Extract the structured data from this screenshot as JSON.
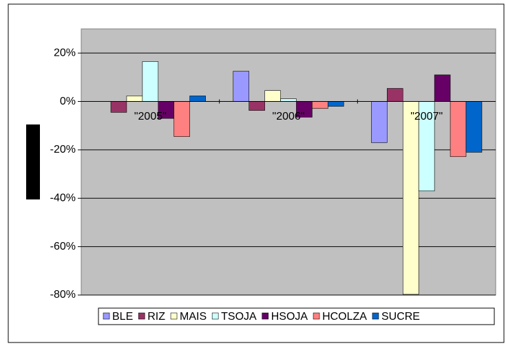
{
  "chart_data": {
    "type": "bar",
    "categories": [
      "\"2005\"",
      "\"2006\"",
      "\"2007\""
    ],
    "series": [
      {
        "name": "BLE",
        "color": "#9999ff",
        "values": [
          0,
          12.5,
          -17
        ]
      },
      {
        "name": "RIZ",
        "color": "#993366",
        "values": [
          -4.5,
          -3.7,
          5.4
        ]
      },
      {
        "name": "MAIS",
        "color": "#ffffcc",
        "values": [
          2.3,
          4.5,
          -79.7
        ]
      },
      {
        "name": "TSOJA",
        "color": "#ccffff",
        "values": [
          16.5,
          1.1,
          -37
        ]
      },
      {
        "name": "HSOJA",
        "color": "#660066",
        "values": [
          -7,
          -6.5,
          11
        ]
      },
      {
        "name": "HCOLZA",
        "color": "#ff8080",
        "values": [
          -14.5,
          -2.9,
          -22.8
        ]
      },
      {
        "name": "SUCRE",
        "color": "#0066cc",
        "values": [
          2.3,
          -2,
          -21
        ]
      }
    ],
    "ylim": [
      -80,
      30
    ],
    "yticks": [
      {
        "value": -80,
        "label": "-80%"
      },
      {
        "value": -60,
        "label": "-60%"
      },
      {
        "value": -40,
        "label": "-40%"
      },
      {
        "value": -20,
        "label": "-20%"
      },
      {
        "value": 0,
        "label": "0%"
      },
      {
        "value": 20,
        "label": "20%"
      }
    ],
    "grid": true,
    "legend": "bottom"
  }
}
